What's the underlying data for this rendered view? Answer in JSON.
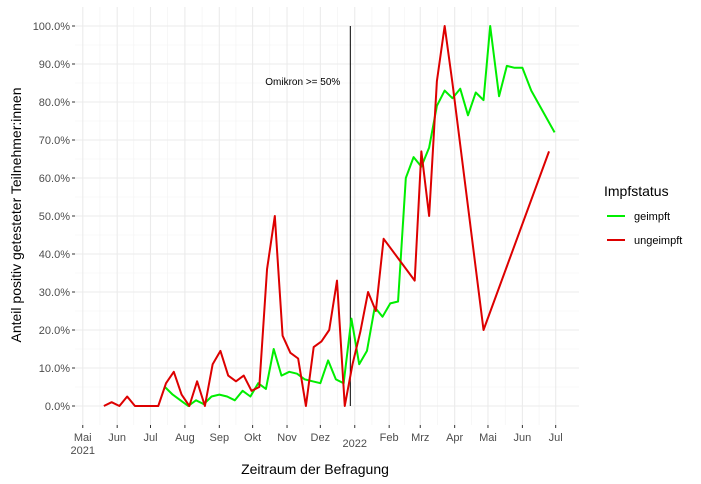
{
  "chart_data": {
    "type": "line",
    "xlabel": "Zeitraum der Befragung",
    "ylabel": "Anteil positiv getesteter Teilnehmer:innen",
    "xlim": [
      "2021-04-24",
      "2022-07-22"
    ],
    "ylim": [
      -0.05,
      1.05
    ],
    "y_ticks": [
      0,
      0.1,
      0.2,
      0.3,
      0.4,
      0.5,
      0.6,
      0.7,
      0.8,
      0.9,
      1.0
    ],
    "y_tick_labels": [
      "0.0%",
      "10.0%",
      "20.0%",
      "30.0%",
      "40.0%",
      "50.0%",
      "60.0%",
      "70.0%",
      "80.0%",
      "90.0%",
      "100.0%"
    ],
    "x_ticks": [
      {
        "date": "2021-05-01",
        "label": "Mai",
        "year": "2021"
      },
      {
        "date": "2021-06-01",
        "label": "Jun",
        "year": ""
      },
      {
        "date": "2021-07-01",
        "label": "Jul",
        "year": ""
      },
      {
        "date": "2021-08-01",
        "label": "Aug",
        "year": ""
      },
      {
        "date": "2021-09-01",
        "label": "Sep",
        "year": ""
      },
      {
        "date": "2021-10-01",
        "label": "Okt",
        "year": ""
      },
      {
        "date": "2021-11-01",
        "label": "Nov",
        "year": ""
      },
      {
        "date": "2021-12-01",
        "label": "Dez",
        "year": ""
      },
      {
        "date": "2022-01-01",
        "label": "",
        "year": "2022"
      },
      {
        "date": "2022-02-01",
        "label": "Feb",
        "year": ""
      },
      {
        "date": "2022-03-01",
        "label": "Mrz",
        "year": ""
      },
      {
        "date": "2022-04-01",
        "label": "Apr",
        "year": ""
      },
      {
        "date": "2022-05-01",
        "label": "Mai",
        "year": ""
      },
      {
        "date": "2022-06-01",
        "label": "Jun",
        "year": ""
      },
      {
        "date": "2022-07-01",
        "label": "Jul",
        "year": ""
      }
    ],
    "grid": true,
    "legend": {
      "title": "Impfstatus",
      "position": "right"
    },
    "vline": {
      "date": "2021-12-28",
      "label": "Omikron >= 50%"
    },
    "series": [
      {
        "name": "geimpft",
        "color": "#00ee00",
        "points": [
          [
            "2021-07-14",
            0.05
          ],
          [
            "2021-07-21",
            0.03
          ],
          [
            "2021-07-28",
            0.015
          ],
          [
            "2021-08-04",
            0.0
          ],
          [
            "2021-08-11",
            0.015
          ],
          [
            "2021-08-18",
            0.005
          ],
          [
            "2021-08-25",
            0.025
          ],
          [
            "2021-09-01",
            0.03
          ],
          [
            "2021-09-08",
            0.025
          ],
          [
            "2021-09-15",
            0.015
          ],
          [
            "2021-09-22",
            0.04
          ],
          [
            "2021-09-29",
            0.025
          ],
          [
            "2021-10-06",
            0.06
          ],
          [
            "2021-10-13",
            0.045
          ],
          [
            "2021-10-20",
            0.15
          ],
          [
            "2021-10-27",
            0.08
          ],
          [
            "2021-11-03",
            0.09
          ],
          [
            "2021-11-10",
            0.085
          ],
          [
            "2021-11-17",
            0.07
          ],
          [
            "2021-11-24",
            0.065
          ],
          [
            "2021-12-01",
            0.06
          ],
          [
            "2021-12-08",
            0.12
          ],
          [
            "2021-12-15",
            0.07
          ],
          [
            "2021-12-22",
            0.06
          ],
          [
            "2021-12-29",
            0.23
          ],
          [
            "2022-01-05",
            0.11
          ],
          [
            "2022-01-12",
            0.145
          ],
          [
            "2022-01-19",
            0.26
          ],
          [
            "2022-01-26",
            0.235
          ],
          [
            "2022-02-02",
            0.27
          ],
          [
            "2022-02-09",
            0.275
          ],
          [
            "2022-02-16",
            0.6
          ],
          [
            "2022-02-23",
            0.655
          ],
          [
            "2022-03-02",
            0.63
          ],
          [
            "2022-03-09",
            0.68
          ],
          [
            "2022-03-16",
            0.79
          ],
          [
            "2022-03-23",
            0.83
          ],
          [
            "2022-03-30",
            0.81
          ],
          [
            "2022-04-06",
            0.835
          ],
          [
            "2022-04-13",
            0.765
          ],
          [
            "2022-04-20",
            0.825
          ],
          [
            "2022-04-27",
            0.805
          ],
          [
            "2022-05-03",
            1.0
          ],
          [
            "2022-05-11",
            0.815
          ],
          [
            "2022-05-18",
            0.895
          ],
          [
            "2022-05-25",
            0.89
          ],
          [
            "2022-06-01",
            0.89
          ],
          [
            "2022-06-09",
            0.83
          ],
          [
            "2022-06-30",
            0.72
          ]
        ]
      },
      {
        "name": "ungeimpft",
        "color": "#dd0000",
        "points": [
          [
            "2021-05-20",
            0.0
          ],
          [
            "2021-05-27",
            0.01
          ],
          [
            "2021-06-03",
            0.0
          ],
          [
            "2021-06-10",
            0.025
          ],
          [
            "2021-06-17",
            0.0
          ],
          [
            "2021-06-24",
            0.0
          ],
          [
            "2021-07-01",
            0.0
          ],
          [
            "2021-07-08",
            0.0
          ],
          [
            "2021-07-15",
            0.06
          ],
          [
            "2021-07-22",
            0.09
          ],
          [
            "2021-07-29",
            0.03
          ],
          [
            "2021-08-05",
            0.0
          ],
          [
            "2021-08-12",
            0.065
          ],
          [
            "2021-08-19",
            0.0
          ],
          [
            "2021-08-26",
            0.11
          ],
          [
            "2021-09-02",
            0.145
          ],
          [
            "2021-09-09",
            0.08
          ],
          [
            "2021-09-16",
            0.065
          ],
          [
            "2021-09-23",
            0.08
          ],
          [
            "2021-09-30",
            0.04
          ],
          [
            "2021-10-07",
            0.05
          ],
          [
            "2021-10-14",
            0.36
          ],
          [
            "2021-10-21",
            0.5
          ],
          [
            "2021-10-28",
            0.185
          ],
          [
            "2021-11-04",
            0.14
          ],
          [
            "2021-11-11",
            0.125
          ],
          [
            "2021-11-18",
            0.0
          ],
          [
            "2021-11-25",
            0.155
          ],
          [
            "2021-12-02",
            0.17
          ],
          [
            "2021-12-09",
            0.2
          ],
          [
            "2021-12-16",
            0.33
          ],
          [
            "2021-12-23",
            0.0
          ],
          [
            "2021-12-30",
            0.11
          ],
          [
            "2022-01-06",
            0.195
          ],
          [
            "2022-01-13",
            0.3
          ],
          [
            "2022-01-20",
            0.25
          ],
          [
            "2022-01-27",
            0.44
          ],
          [
            "2022-02-24",
            0.33
          ],
          [
            "2022-03-02",
            0.67
          ],
          [
            "2022-03-09",
            0.5
          ],
          [
            "2022-03-16",
            0.855
          ],
          [
            "2022-03-23",
            1.0
          ],
          [
            "2022-03-30",
            0.85
          ],
          [
            "2022-04-27",
            0.2
          ],
          [
            "2022-06-25",
            0.67
          ]
        ]
      }
    ]
  }
}
